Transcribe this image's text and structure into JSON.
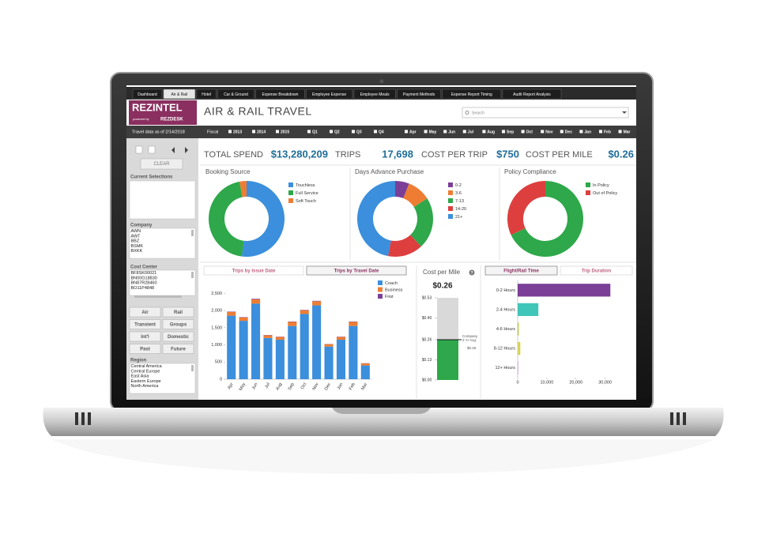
{
  "tabs": [
    "Dashboard",
    "Air & Rail",
    "Hotel",
    "Car & Ground",
    "Expense Breakdown",
    "Employee Expense",
    "Employee Meals",
    "Payment Methods",
    "Expense Report Timing",
    "Audit Report Analysis"
  ],
  "active_tab": 1,
  "brand": {
    "name": "REZINTEL",
    "powered": "powered by",
    "sub": "REZDESK"
  },
  "title": "AIR & RAIL TRAVEL",
  "search": "Search",
  "filter_bar": {
    "data_date": "Travel data as of 2/14/2018",
    "fiscal": "Fiscal",
    "years": [
      "2013",
      "2014",
      "2015"
    ],
    "quarters": [
      "Q1",
      "Q2",
      "Q3",
      "Q4"
    ],
    "months": [
      "Apr",
      "May",
      "Jun",
      "Jul",
      "Aug",
      "Sep",
      "Oct",
      "Nov",
      "Dec",
      "Jan",
      "Feb",
      "Mar"
    ]
  },
  "kpis": [
    {
      "label": "TOTAL SPEND",
      "value": "$13,280,209"
    },
    {
      "label": "TRIPS",
      "value": "17,698"
    },
    {
      "label": "COST PER TRIP",
      "value": "$750"
    },
    {
      "label": "COST PER MILE",
      "value": "$0.26"
    }
  ],
  "sidebar": {
    "clear": "CLEAR",
    "current_selections": "Current Selections",
    "company": {
      "label": "Company",
      "items": [
        "AWN",
        "AWT",
        "BBZ",
        "BSMK",
        "BXKK"
      ]
    },
    "cost_center": {
      "label": "Cost Center",
      "items": [
        "BF8SK00021",
        "BN00G18830",
        "BN87R28460",
        "BO11P4848"
      ]
    },
    "buttons": [
      [
        "Air",
        "Rail"
      ],
      [
        "Transient",
        "Groups"
      ],
      [
        "Int'l",
        "Domestic"
      ],
      [
        "Past",
        "Future"
      ]
    ],
    "region": {
      "label": "Region",
      "items": [
        "Central America",
        "Central Europe",
        "East Asia",
        "Eastern Europe",
        "North America"
      ]
    }
  },
  "donuts": [
    {
      "title": "Booking Source",
      "categories": [
        "Touchless",
        "Full Service",
        "Soft Touch"
      ],
      "values": [
        52,
        45,
        3
      ],
      "colors": [
        "#3b8fdc",
        "#2ea84a",
        "#ee7d33"
      ]
    },
    {
      "title": "Days Advance Purchase",
      "categories": [
        "0-2",
        "3-6",
        "7-13",
        "14-20",
        "21+"
      ],
      "values": [
        6,
        10,
        22,
        15,
        47
      ],
      "colors": [
        "#7b3f98",
        "#ee7d33",
        "#2ea84a",
        "#dd3f3f",
        "#3b8fdc"
      ]
    },
    {
      "title": "Policy Compliance",
      "categories": [
        "In Policy",
        "Out of Policy"
      ],
      "values": [
        68,
        32
      ],
      "colors": [
        "#2ea84a",
        "#dd3f3f"
      ]
    }
  ],
  "trips_chart": {
    "type": "bar",
    "tabs": [
      "Trips by Issue Date",
      "Trips by Travel Date"
    ],
    "active_tab": 1,
    "categories": [
      "Apr",
      "May",
      "Jun",
      "Jul",
      "Aug",
      "Sep",
      "Oct",
      "Nov",
      "Dec",
      "Jan",
      "Feb",
      "Mar"
    ],
    "series": [
      {
        "name": "Coach",
        "color": "#3b8fdc",
        "values": [
          1850,
          1700,
          2200,
          1200,
          1150,
          1550,
          1900,
          2150,
          950,
          1150,
          1550,
          400
        ]
      },
      {
        "name": "Business",
        "color": "#ee7d33",
        "values": [
          110,
          100,
          130,
          80,
          80,
          120,
          110,
          120,
          70,
          80,
          120,
          60
        ]
      },
      {
        "name": "First",
        "color": "#7b3f98",
        "values": [
          10,
          10,
          15,
          8,
          8,
          10,
          10,
          12,
          6,
          8,
          10,
          5
        ]
      }
    ],
    "ylim": [
      0,
      2600
    ],
    "yticks": [
      0,
      500,
      {
        "value": 1000,
        "label": "1,000"
      },
      {
        "value": 1500,
        "label": "1,500"
      },
      {
        "value": 2000,
        "label": "2,000"
      },
      {
        "value": 2500,
        "label": "2,500"
      }
    ]
  },
  "cost_per_mile": {
    "title": "Cost per Mile",
    "help": "?",
    "value": 0.26,
    "value_label": "$0.26",
    "ylim": [
      0,
      0.53
    ],
    "yticks": [
      {
        "value": 0,
        "label": "$0.00"
      },
      {
        "value": 0.13,
        "label": "$0.13"
      },
      {
        "value": 0.26,
        "label": "$0.26"
      },
      {
        "value": 0.4,
        "label": "$0.40"
      },
      {
        "value": 0.53,
        "label": "$0.53"
      }
    ],
    "avg": {
      "label": [
        "Company",
        "3 Yr Avg:"
      ],
      "value": 0.26,
      "value_label": "$0.26"
    }
  },
  "duration_chart": {
    "type": "hbar",
    "tabs": [
      "Flight/Rail Time",
      "Trip Duration"
    ],
    "active_tab": 0,
    "categories": [
      "0-2 Hours",
      "2-4 Hours",
      "4-6 Hours",
      "8-12 Hours",
      "12+ Hours"
    ],
    "values": [
      31800,
      7100,
      350,
      900,
      250
    ],
    "colors": [
      "#7b3f98",
      "#3fc6b8",
      "#b5c94a",
      "#d6d35a",
      "#d1b0d6"
    ],
    "xlim": [
      0,
      32000
    ],
    "xticks": [
      0,
      {
        "value": 10000,
        "label": "10,000"
      },
      {
        "value": 20000,
        "label": "20,000"
      },
      {
        "value": 30000,
        "label": "30,000"
      }
    ]
  }
}
